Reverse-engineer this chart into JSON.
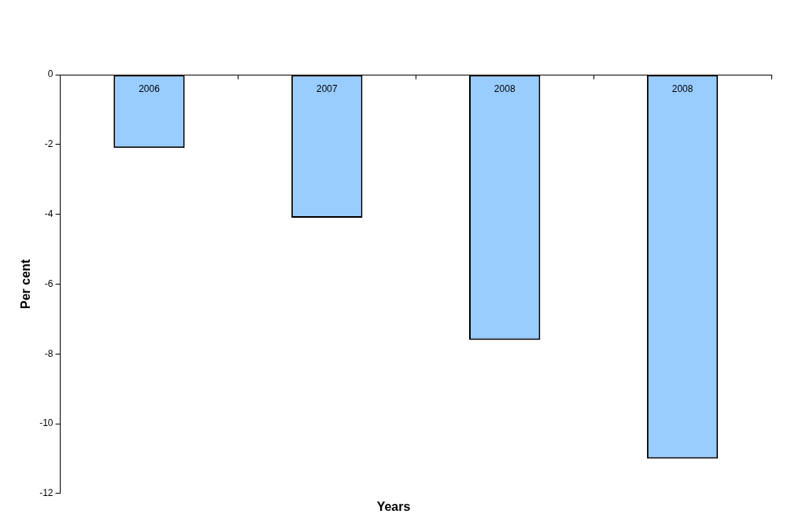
{
  "chart_data": {
    "type": "bar",
    "xlabel": "Years",
    "ylabel": "Per cent",
    "categories": [
      "2006",
      "2007",
      "2008",
      "2008"
    ],
    "values": [
      -2.1,
      -4.1,
      -7.6,
      -11.0
    ],
    "color": "#99ccff",
    "ylim": [
      -12,
      0
    ],
    "yticks": [
      -12,
      -10,
      -8,
      -6,
      -4,
      -2,
      0
    ],
    "grid": false,
    "legend": false
  }
}
